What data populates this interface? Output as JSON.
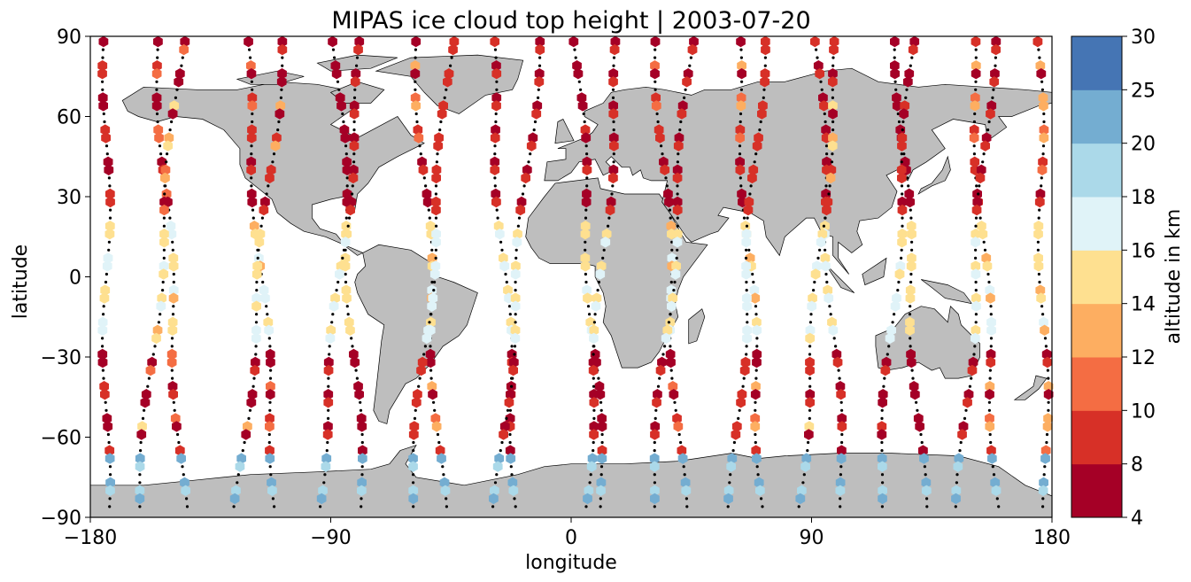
{
  "chart_data": {
    "type": "scatter",
    "title": "MIPAS ice cloud top height | 2003-07-20",
    "xlabel": "longitude",
    "ylabel": "latitude",
    "xlim": [
      -180,
      180
    ],
    "ylim": [
      -90,
      90
    ],
    "xticks": [
      -180,
      -90,
      0,
      90,
      180
    ],
    "xtick_labels": [
      "−180",
      "−90",
      "0",
      "90",
      "180"
    ],
    "yticks": [
      -90,
      -60,
      -30,
      0,
      30,
      60,
      90
    ],
    "ytick_labels": [
      "−90",
      "−60",
      "−30",
      "0",
      "30",
      "60",
      "90"
    ],
    "grid": false,
    "background_map": "world coastlines, land filled grey",
    "marker": "hexagon",
    "colorbar": {
      "label": "altitude in km",
      "bounds": [
        4,
        8,
        10,
        12,
        14,
        16,
        18,
        20,
        25,
        30
      ],
      "tick_labels": [
        "4",
        "8",
        "10",
        "12",
        "14",
        "16",
        "18",
        "20",
        "25",
        "30"
      ],
      "colors": [
        "#a50026",
        "#d73027",
        "#f46d43",
        "#fdae61",
        "#fee090",
        "#e0f3f8",
        "#abd9e9",
        "#74add1",
        "#4575b4"
      ]
    },
    "orbit_tracks": [
      {
        "lon_top": -174,
        "lon_bottom": -174,
        "pattern": "7001",
        "color_pattern": "11122222"
      },
      {
        "lon_top": -155,
        "lon_bottom": -145,
        "pattern": "7001",
        "color_pattern": "1112233"
      },
      {
        "lon_top": -146,
        "lon_bottom": -162,
        "pattern": "7100",
        "color_pattern": "11345"
      },
      {
        "lon_top": -122,
        "lon_bottom": -110,
        "pattern": "7001",
        "color_pattern": "11223"
      },
      {
        "lon_top": -108,
        "lon_bottom": -125,
        "pattern": "7100",
        "color_pattern": "11224"
      },
      {
        "lon_top": -88,
        "lon_bottom": -78,
        "pattern": "7001",
        "color_pattern": "1123"
      },
      {
        "lon_top": -78,
        "lon_bottom": -95,
        "pattern": "7100",
        "color_pattern": "1122"
      },
      {
        "lon_top": -58,
        "lon_bottom": -48,
        "pattern": "7001",
        "color_pattern": "11234"
      },
      {
        "lon_top": -45,
        "lon_bottom": -60,
        "pattern": "7100",
        "color_pattern": "1222"
      },
      {
        "lon_top": -30,
        "lon_bottom": -20,
        "pattern": "7001",
        "color_pattern": "1213"
      },
      {
        "lon_top": -12,
        "lon_bottom": -28,
        "pattern": "7100",
        "color_pattern": "1122"
      },
      {
        "lon_top": 2,
        "lon_bottom": 12,
        "pattern": "7001",
        "color_pattern": "11211"
      },
      {
        "lon_top": 18,
        "lon_bottom": 5,
        "pattern": "7100",
        "color_pattern": "1122"
      },
      {
        "lon_top": 32,
        "lon_bottom": 42,
        "pattern": "7001",
        "color_pattern": "11223"
      },
      {
        "lon_top": 45,
        "lon_bottom": 30,
        "pattern": "7100",
        "color_pattern": "1122"
      },
      {
        "lon_top": 62,
        "lon_bottom": 72,
        "pattern": "7001",
        "color_pattern": "11234"
      },
      {
        "lon_top": 72,
        "lon_bottom": 60,
        "pattern": "7100",
        "color_pattern": "1222"
      },
      {
        "lon_top": 92,
        "lon_bottom": 102,
        "pattern": "7001",
        "color_pattern": "1233"
      },
      {
        "lon_top": 100,
        "lon_bottom": 85,
        "pattern": "7100",
        "color_pattern": "12245"
      },
      {
        "lon_top": 122,
        "lon_bottom": 132,
        "pattern": "7001",
        "color_pattern": "1122"
      },
      {
        "lon_top": 128,
        "lon_bottom": 115,
        "pattern": "7100",
        "color_pattern": "11222"
      },
      {
        "lon_top": 150,
        "lon_bottom": 160,
        "pattern": "7001",
        "color_pattern": "12234"
      },
      {
        "lon_top": 158,
        "lon_bottom": 145,
        "pattern": "7100",
        "color_pattern": "1122"
      },
      {
        "lon_top": 175,
        "lon_bottom": 178,
        "pattern": "7001",
        "color_pattern": "12344"
      }
    ]
  }
}
